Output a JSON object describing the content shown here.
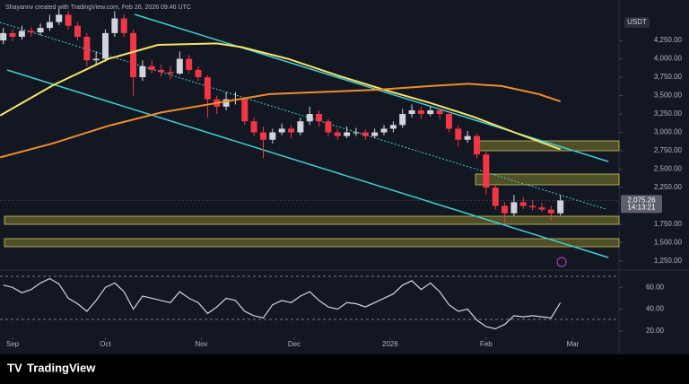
{
  "chart_data": {
    "type": "candlestick",
    "attribution": "Shayannv created with TradingView.com, Feb 26, 2026 09:46 UTC",
    "currency": "USDT",
    "brand": "TradingView",
    "up_color": "#d1d4dc",
    "down_color": "#f23645",
    "xlim": [
      -4.06,
      195.94
    ],
    "xticks": [
      {
        "value": 0,
        "label": "Sep"
      },
      {
        "value": 30,
        "label": "Oct"
      },
      {
        "value": 61,
        "label": "Nov"
      },
      {
        "value": 91,
        "label": "Dec"
      },
      {
        "value": 122,
        "label": "2026"
      },
      {
        "value": 153,
        "label": "Feb"
      },
      {
        "value": 181,
        "label": "Mar"
      }
    ],
    "ylim": [
      1140,
      4800
    ],
    "yticks": [
      {
        "value": 4250,
        "label": "4,250.00"
      },
      {
        "value": 4000,
        "label": "4,000.00"
      },
      {
        "value": 3750,
        "label": "3,750.00"
      },
      {
        "value": 3500,
        "label": "3,500.00"
      },
      {
        "value": 3250,
        "label": "3,250.00"
      },
      {
        "value": 3000,
        "label": "3,000.00"
      },
      {
        "value": 2750,
        "label": "2,750.00"
      },
      {
        "value": 2500,
        "label": "2,500.00"
      },
      {
        "value": 2250,
        "label": "2,250.00"
      },
      {
        "value": 1750,
        "label": "1,750.00"
      },
      {
        "value": 1500,
        "label": "1,500.00"
      },
      {
        "value": 1250,
        "label": "1,250.00"
      }
    ],
    "last_price": {
      "value": 2075.26,
      "label": "2,075.26"
    },
    "countdown": "14:13:21",
    "x": [
      -3,
      0,
      3,
      6,
      9,
      12,
      15,
      18,
      21,
      24,
      27,
      30,
      33,
      36,
      39,
      42,
      45,
      48,
      51,
      54,
      57,
      60,
      63,
      66,
      69,
      72,
      75,
      78,
      81,
      84,
      87,
      90,
      93,
      96,
      99,
      102,
      105,
      108,
      111,
      114,
      117,
      120,
      123,
      126,
      129,
      132,
      135,
      138,
      141,
      144,
      147,
      150,
      153,
      156,
      159,
      162,
      165,
      168,
      171,
      174,
      177
    ],
    "candles": [
      [
        4250,
        4420,
        4200,
        4350
      ],
      [
        4350,
        4400,
        4240,
        4300
      ],
      [
        4300,
        4450,
        4260,
        4380
      ],
      [
        4380,
        4430,
        4300,
        4360
      ],
      [
        4360,
        4480,
        4320,
        4420
      ],
      [
        4420,
        4600,
        4380,
        4500
      ],
      [
        4500,
        4680,
        4460,
        4600
      ],
      [
        4600,
        4650,
        4400,
        4450
      ],
      [
        4450,
        4500,
        4250,
        4300
      ],
      [
        4300,
        4350,
        3900,
        3980
      ],
      [
        3980,
        4100,
        3920,
        4000
      ],
      [
        4000,
        4400,
        3960,
        4350
      ],
      [
        4350,
        4650,
        4300,
        4550
      ],
      [
        4550,
        4600,
        4300,
        4350
      ],
      [
        4350,
        4400,
        3500,
        3750
      ],
      [
        3750,
        3980,
        3700,
        3900
      ],
      [
        3900,
        3980,
        3800,
        3850
      ],
      [
        3850,
        3920,
        3760,
        3820
      ],
      [
        3820,
        3900,
        3720,
        3800
      ],
      [
        3800,
        4100,
        3780,
        4000
      ],
      [
        4000,
        4050,
        3800,
        3850
      ],
      [
        3850,
        3900,
        3700,
        3750
      ],
      [
        3750,
        3780,
        3200,
        3450
      ],
      [
        3450,
        3500,
        3250,
        3350
      ],
      [
        3350,
        3550,
        3300,
        3450
      ],
      [
        3450,
        3550,
        3380,
        3450
      ],
      [
        3450,
        3480,
        3100,
        3150
      ],
      [
        3150,
        3200,
        2950,
        3000
      ],
      [
        3000,
        3080,
        2650,
        2900
      ],
      [
        2900,
        3050,
        2850,
        3000
      ],
      [
        3000,
        3120,
        2960,
        3050
      ],
      [
        3050,
        3100,
        2920,
        3000
      ],
      [
        3000,
        3200,
        2960,
        3150
      ],
      [
        3150,
        3350,
        3100,
        3250
      ],
      [
        3250,
        3300,
        3080,
        3150
      ],
      [
        3150,
        3180,
        2950,
        3000
      ],
      [
        3000,
        3050,
        2900,
        2950
      ],
      [
        2950,
        3080,
        2920,
        3000
      ],
      [
        3000,
        3060,
        2950,
        3000
      ],
      [
        3000,
        3040,
        2900,
        2950
      ],
      [
        2950,
        3050,
        2920,
        3000
      ],
      [
        3000,
        3100,
        2960,
        3050
      ],
      [
        3050,
        3150,
        3000,
        3100
      ],
      [
        3100,
        3320,
        3060,
        3250
      ],
      [
        3250,
        3380,
        3200,
        3300
      ],
      [
        3300,
        3350,
        3180,
        3250
      ],
      [
        3250,
        3350,
        3220,
        3300
      ],
      [
        3300,
        3320,
        3180,
        3250
      ],
      [
        3250,
        3280,
        3000,
        3050
      ],
      [
        3050,
        3100,
        2800,
        2900
      ],
      [
        2900,
        3020,
        2860,
        2950
      ],
      [
        2950,
        2980,
        2650,
        2700
      ],
      [
        2700,
        2750,
        2150,
        2250
      ],
      [
        2250,
        2300,
        1950,
        2000
      ],
      [
        2000,
        2050,
        1750,
        1900
      ],
      [
        1900,
        2150,
        1860,
        2050
      ],
      [
        2050,
        2120,
        1960,
        2000
      ],
      [
        2000,
        2080,
        1940,
        1980
      ],
      [
        1980,
        2040,
        1920,
        1950
      ],
      [
        1950,
        2000,
        1800,
        1900
      ],
      [
        1900,
        2150,
        1870,
        2075.26
      ]
    ],
    "moving_averages": [
      {
        "color": "#f7e26b",
        "x": [
          -4,
          13,
          31,
          47,
          66,
          74,
          89,
          106,
          120,
          135,
          149,
          164,
          177
        ],
        "values": [
          3230,
          3640,
          4000,
          4190,
          4210,
          4160,
          4000,
          3760,
          3580,
          3400,
          3210,
          2970,
          2770
        ]
      },
      {
        "color": "#f08c28",
        "x": [
          -4,
          13,
          31,
          48,
          66,
          83,
          100,
          118,
          135,
          147,
          158,
          170,
          177
        ],
        "values": [
          2660,
          2850,
          3090,
          3270,
          3400,
          3520,
          3550,
          3580,
          3630,
          3660,
          3630,
          3520,
          3420
        ]
      }
    ],
    "indicator": {
      "type": "line",
      "color": "#d1d4dc",
      "ylim": [
        15,
        75
      ],
      "yticks": [
        {
          "value": 60,
          "label": "60.00"
        },
        {
          "value": 40,
          "label": "40.00"
        },
        {
          "value": 20,
          "label": "20.00"
        }
      ],
      "values": [
        62,
        60,
        55,
        58,
        64,
        68,
        63,
        50,
        45,
        38,
        48,
        60,
        64,
        56,
        40,
        52,
        50,
        48,
        46,
        56,
        50,
        46,
        36,
        42,
        50,
        48,
        38,
        34,
        32,
        44,
        48,
        46,
        52,
        56,
        48,
        42,
        40,
        46,
        45,
        42,
        46,
        50,
        54,
        62,
        66,
        58,
        64,
        56,
        44,
        38,
        40,
        30,
        24,
        22,
        26,
        34,
        33,
        34,
        33,
        32,
        46
      ]
    }
  }
}
